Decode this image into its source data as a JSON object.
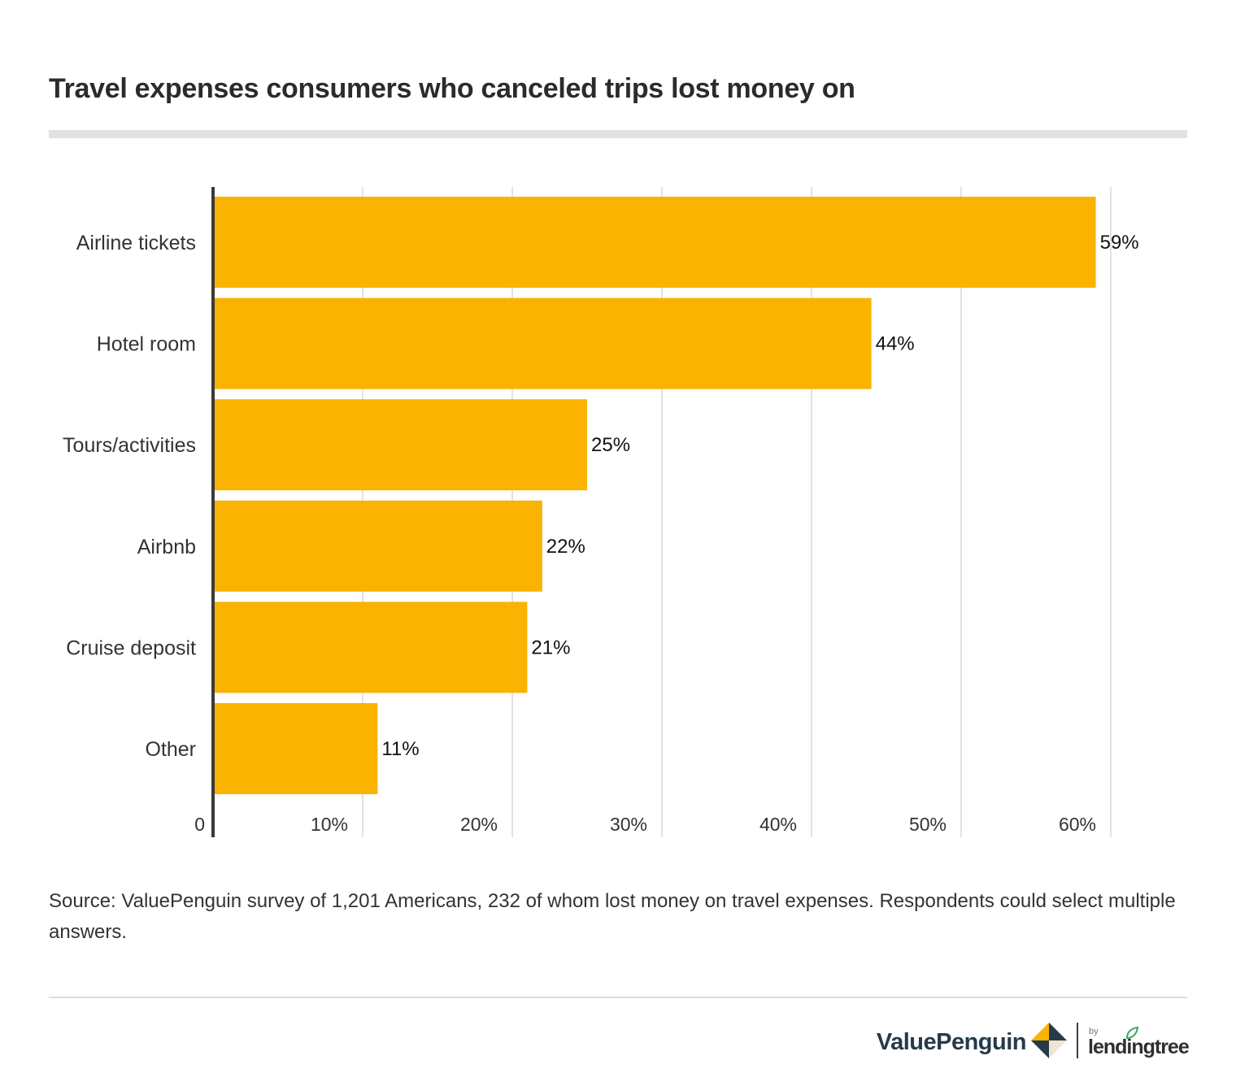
{
  "title": "Travel expenses consumers who canceled trips lost money on",
  "source_note": "Source: ValuePenguin survey of 1,201 Americans, 232 of whom lost money on travel expenses. Respondents could select multiple answers.",
  "branding": {
    "valuepenguin_label": "ValuePenguin",
    "by_label": "by",
    "lendingtree_label": "lendingtree",
    "vp_logo_icon": "valuepenguin-diamond-icon",
    "lt_leaf_icon": "lendingtree-leaf-icon"
  },
  "colors": {
    "bar": "#F9B300",
    "grid": "#d9d9d9",
    "axis": "#3a3a3a",
    "text": "#333333",
    "label": "#111111"
  },
  "chart_data": {
    "type": "bar",
    "orientation": "horizontal",
    "categories": [
      "Airline tickets",
      "Hotel room",
      "Tours/activities",
      "Airbnb",
      "Cruise deposit",
      "Other"
    ],
    "values": [
      59,
      44,
      25,
      22,
      21,
      11
    ],
    "value_labels": [
      "59%",
      "44%",
      "25%",
      "22%",
      "21%",
      "11%"
    ],
    "x_ticks": [
      0,
      10,
      20,
      30,
      40,
      50,
      60
    ],
    "x_tick_labels": [
      "0",
      "10%",
      "20%",
      "30%",
      "40%",
      "50%",
      "60%"
    ],
    "xlim": [
      0,
      60
    ],
    "grid": true,
    "legend": "none",
    "title": "Travel expenses consumers who canceled trips lost money on",
    "xlabel": "",
    "ylabel": ""
  }
}
